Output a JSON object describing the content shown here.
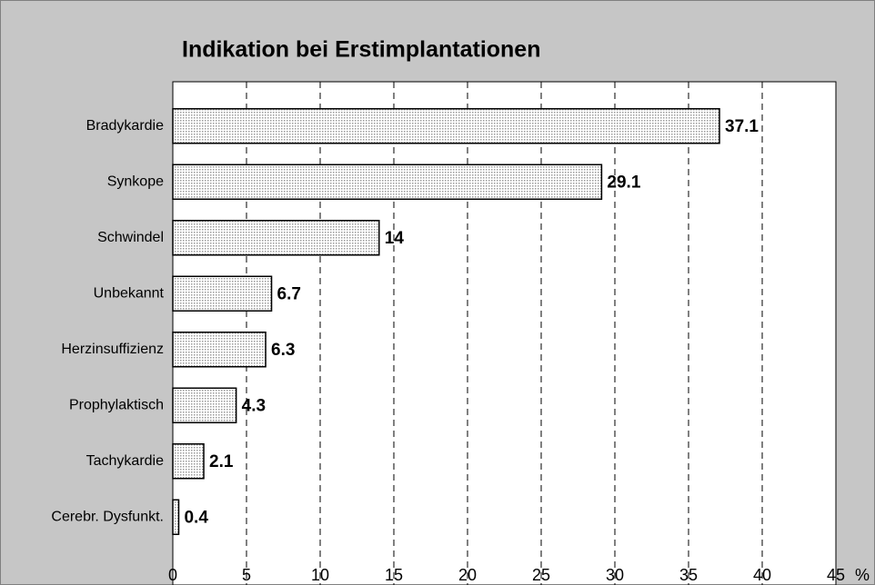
{
  "chart_data": {
    "type": "hbar",
    "title": "Indikation bei Erstimplantationen",
    "categories": [
      "Bradykardie",
      "Synkope",
      "Schwindel",
      "Unbekannt",
      "Herzinsuffizienz",
      "Prophylaktisch",
      "Tachykardie",
      "Cerebr. Dysfunkt."
    ],
    "values": [
      37.1,
      29.1,
      14,
      6.7,
      6.3,
      4.3,
      2.1,
      0.4
    ],
    "xlabel": "%",
    "xlim": [
      0,
      45
    ],
    "xticks": [
      0,
      5,
      10,
      15,
      20,
      25,
      30,
      35,
      40,
      45
    ],
    "grid": true,
    "color": "#d8d8d8"
  }
}
